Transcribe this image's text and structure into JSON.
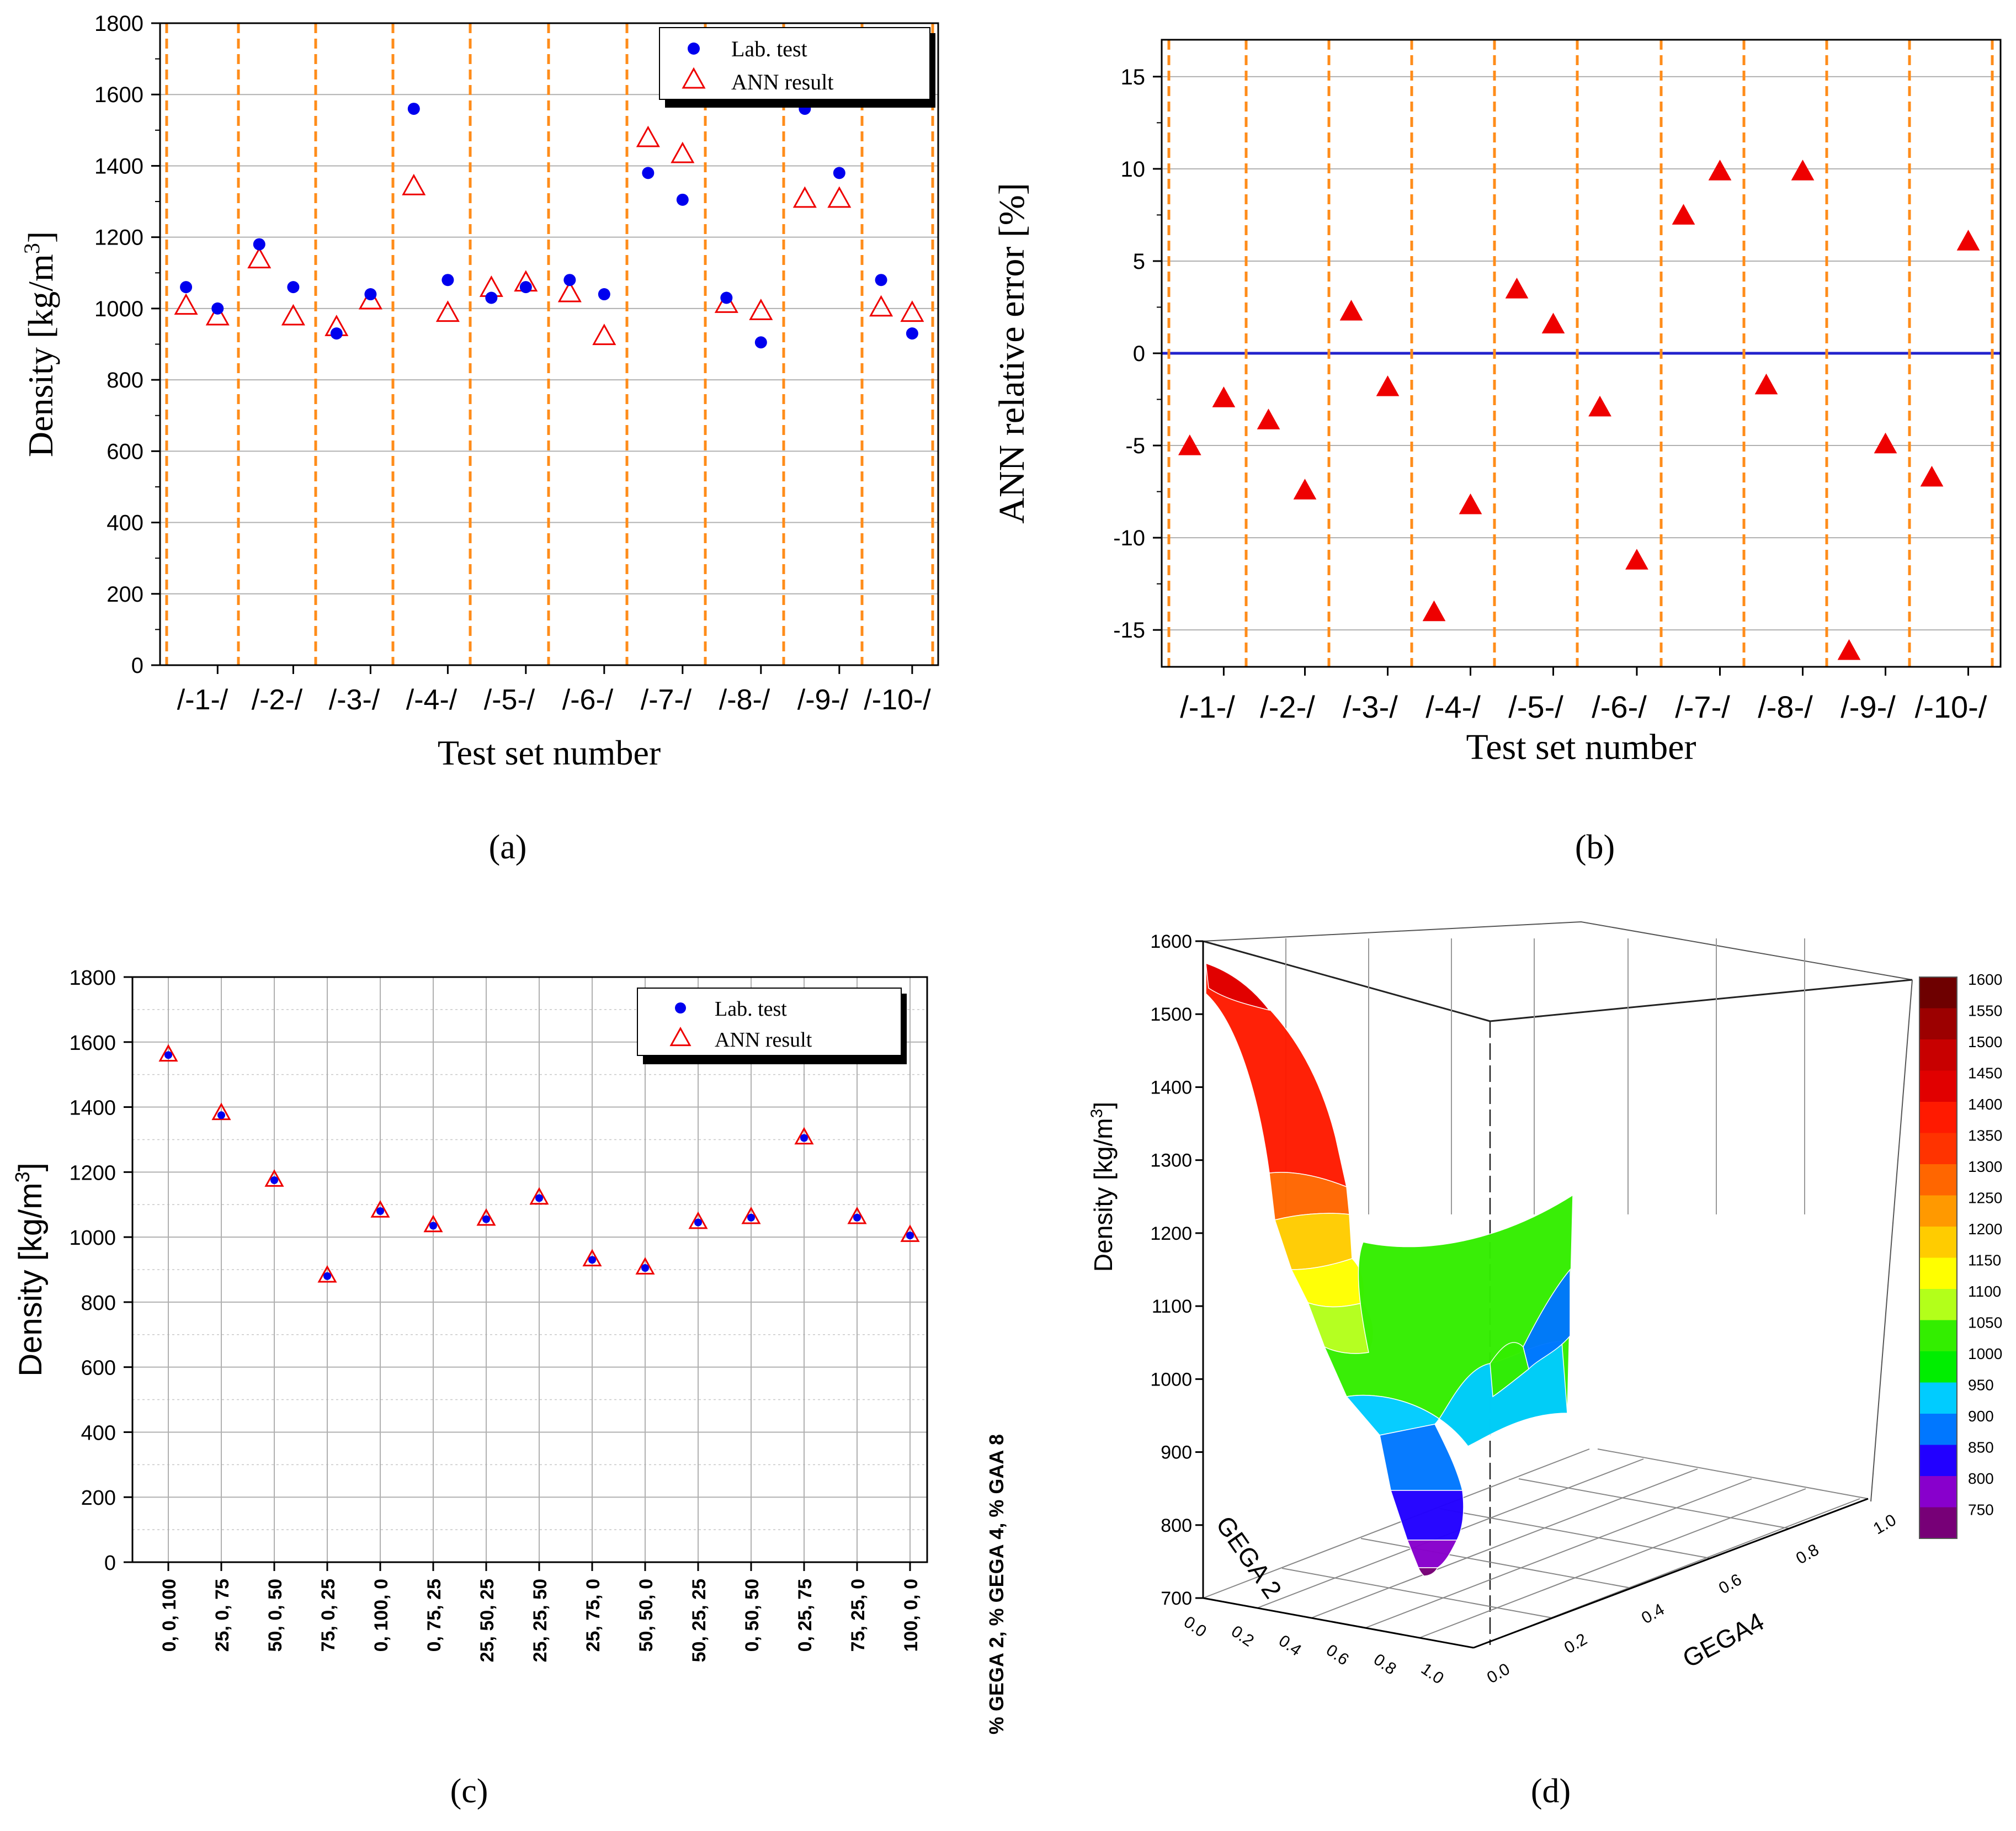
{
  "panels": {
    "a": "(a)",
    "b": "(b)",
    "c": "(c)",
    "d": "(d)"
  },
  "colors": {
    "lab": "#0000ee",
    "ann": "#ee0000",
    "divider": "#ff8c1a",
    "zero_line": "#2222cc",
    "grid": "#b0b0b0"
  },
  "chart_data": [
    {
      "id": "a",
      "type": "scatter",
      "title": "",
      "xlabel": "Test set number",
      "ylabel": "Density [kg/m3]",
      "ylim": [
        0,
        1800
      ],
      "yticks": [
        0,
        200,
        400,
        600,
        800,
        1000,
        1200,
        1400,
        1600,
        1800
      ],
      "categories": [
        "/-1-/",
        "/-2-/",
        "/-3-/",
        "/-4-/",
        "/-5-/",
        "/-6-/",
        "/-7-/",
        "/-8-/",
        "/-9-/",
        "/-10-/"
      ],
      "legend": [
        "Lab. test",
        "ANN result"
      ],
      "legend_position": "top-right",
      "series": [
        {
          "name": "Lab. test",
          "values": [
            1060,
            1000,
            1180,
            1060,
            930,
            1040,
            1560,
            1080,
            1030,
            1060,
            1080,
            1040,
            1380,
            1305,
            1030,
            905,
            1560,
            1380,
            1080,
            930
          ]
        },
        {
          "name": "ANN result",
          "values": [
            1005,
            975,
            1135,
            975,
            945,
            1020,
            1340,
            985,
            1055,
            1070,
            1040,
            920,
            1475,
            1430,
            1010,
            990,
            1305,
            1305,
            1000,
            985
          ]
        }
      ]
    },
    {
      "id": "b",
      "type": "scatter",
      "title": "",
      "xlabel": "Test set number",
      "ylabel": "ANN relative error [%]",
      "ylim": [
        -17,
        17
      ],
      "yticks": [
        -15,
        -10,
        -5,
        0,
        5,
        10,
        15
      ],
      "categories": [
        "/-1-/",
        "/-2-/",
        "/-3-/",
        "/-4-/",
        "/-5-/",
        "/-6-/",
        "/-7-/",
        "/-8-/",
        "/-9-/",
        "/-10-/"
      ],
      "series": [
        {
          "name": "ANN relative error",
          "values": [
            -5.1,
            -2.5,
            -3.7,
            -7.5,
            2.2,
            -1.9,
            -14.1,
            -8.3,
            3.4,
            1.5,
            -3.0,
            -11.3,
            7.4,
            9.8,
            -1.8,
            9.8,
            -16.2,
            -5.0,
            -6.8,
            6.0
          ]
        }
      ]
    },
    {
      "id": "c",
      "type": "scatter",
      "title": "",
      "xlabel": "% GEGA 2, % GEGA 4, % GAA 8",
      "ylabel": "Density [kg/m3]",
      "ylim": [
        0,
        1800
      ],
      "yticks": [
        0,
        200,
        400,
        600,
        800,
        1000,
        1200,
        1400,
        1600,
        1800
      ],
      "categories": [
        "0, 0, 100",
        "25, 0, 75",
        "50, 0, 50",
        "75, 0, 25",
        "0, 100, 0",
        "0, 75, 25",
        "25, 50, 25",
        "25, 25, 50",
        "25, 75, 0",
        "50, 50, 0",
        "50, 25, 25",
        "0, 50, 50",
        "0, 25, 75",
        "75, 25, 0",
        "100, 0, 0"
      ],
      "legend": [
        "Lab. test",
        "ANN result"
      ],
      "legend_position": "top-right",
      "series": [
        {
          "name": "Lab. test",
          "values": [
            1560,
            1375,
            1175,
            880,
            1080,
            1035,
            1055,
            1120,
            930,
            905,
            1045,
            1060,
            1305,
            1060,
            1005
          ]
        },
        {
          "name": "ANN result",
          "values": [
            1560,
            1380,
            1175,
            880,
            1080,
            1035,
            1055,
            1120,
            930,
            905,
            1045,
            1060,
            1305,
            1060,
            1005
          ]
        }
      ]
    },
    {
      "id": "d",
      "type": "surface3d",
      "title": "",
      "xlabel": "GEGA 2",
      "ylabel": "GEGA4",
      "zlabel": "Density [kg/m3]",
      "zlim": [
        700,
        1600
      ],
      "zticks": [
        700,
        800,
        900,
        1000,
        1100,
        1200,
        1300,
        1400,
        1500,
        1600
      ],
      "x_ticks": [
        "0.0",
        "0.2",
        "0.4",
        "0.6",
        "0.8",
        "1.0"
      ],
      "y_ticks": [
        "0.0",
        "0.2",
        "0.4",
        "0.6",
        "0.8",
        "1.0"
      ],
      "colorbar_levels": [
        1600,
        1550,
        1500,
        1450,
        1400,
        1350,
        1300,
        1250,
        1200,
        1150,
        1100,
        1050,
        1000,
        950,
        900,
        850,
        800,
        750
      ],
      "colorbar_colors": [
        "#6e0000",
        "#9c0000",
        "#c80000",
        "#e10000",
        "#ff1a00",
        "#ff3300",
        "#ff6600",
        "#ff9900",
        "#ffcc00",
        "#ffff00",
        "#b3ff1a",
        "#33ee00",
        "#00ee00",
        "#00ccff",
        "#0077ff",
        "#2200ff",
        "#8800cc",
        "#770077"
      ]
    }
  ]
}
